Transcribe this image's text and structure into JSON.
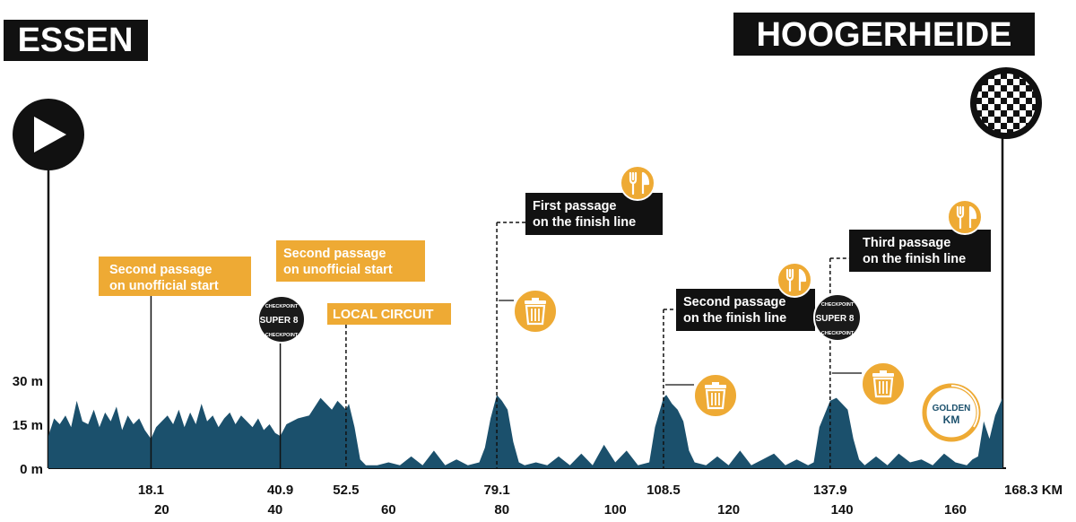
{
  "start_city": "ESSEN",
  "finish_city": "HOOGERHEIDE",
  "colors": {
    "profile": "#1b506c",
    "accent": "#eeaa34",
    "dark": "#111111"
  },
  "icons": {
    "start": "play-icon",
    "finish": "checkered-flag-icon",
    "feed": "fork-knife-icon",
    "waste": "trash-bin-icon"
  },
  "super8_badge": {
    "top": "CHECKPOINT",
    "main": "SUPER 8",
    "bottom": "CHECKPOINT"
  },
  "golden_km_badge": {
    "line1": "GOLDEN",
    "line2": "KM"
  },
  "markers": [
    {
      "km": 18.1,
      "label": [
        "Second passage",
        "on unofficial start"
      ],
      "style": "accent",
      "line": "solid"
    },
    {
      "km": 40.9,
      "label": [
        "Second passage",
        "on unofficial start"
      ],
      "style": "accent",
      "line": "solid",
      "badge": "super8"
    },
    {
      "km": 52.5,
      "label": [
        "LOCAL CIRCUIT"
      ],
      "style": "accent",
      "line": "dashed"
    },
    {
      "km": 79.1,
      "label": [
        "First passage",
        "on the finish line"
      ],
      "style": "dark",
      "line": "dashed",
      "icons": [
        "feed",
        "waste"
      ]
    },
    {
      "km": 108.5,
      "label": [
        "Second passage",
        "on the finish line"
      ],
      "style": "dark",
      "line": "dashed",
      "icons": [
        "feed",
        "waste"
      ]
    },
    {
      "km": 137.9,
      "label": [
        "Third passage",
        "on the finish line"
      ],
      "style": "dark",
      "line": "dashed",
      "badge": "super8",
      "icons": [
        "feed",
        "waste"
      ]
    }
  ],
  "chart_data": {
    "type": "area",
    "title": "",
    "xlabel": "",
    "ylabel": "",
    "xlim": [
      0,
      168.3
    ],
    "ylim": [
      0,
      30
    ],
    "y_ticks": [
      "30 m",
      "15 m",
      "0 m"
    ],
    "y_tick_values": [
      30,
      15,
      0
    ],
    "x_ticks_major": [
      "18.1",
      "40.9",
      "52.5",
      "79.1",
      "108.5",
      "137.9",
      "168.3 KM"
    ],
    "x_ticks_major_values": [
      18.1,
      40.9,
      52.5,
      79.1,
      108.5,
      137.9,
      168.3
    ],
    "x_ticks_minor": [
      "20",
      "40",
      "60",
      "80",
      "100",
      "120",
      "140",
      "160"
    ],
    "x_ticks_minor_values": [
      20,
      40,
      60,
      80,
      100,
      120,
      140,
      160
    ],
    "x": [
      0,
      1,
      2,
      3,
      4,
      5,
      6,
      7,
      8,
      9,
      10,
      11,
      12,
      13,
      14,
      15,
      16,
      17,
      18.1,
      19,
      20,
      21,
      22,
      23,
      24,
      25,
      26,
      27,
      28,
      29,
      30,
      31,
      32,
      33,
      34,
      35,
      36,
      37,
      38,
      39,
      40,
      40.9,
      42,
      44,
      46,
      48,
      50,
      51,
      52.5,
      53,
      54,
      55,
      56,
      57,
      58,
      60,
      62,
      64,
      66,
      68,
      70,
      72,
      74,
      76,
      77,
      78,
      79.1,
      80,
      81,
      82,
      83,
      84,
      86,
      88,
      90,
      92,
      94,
      96,
      98,
      100,
      102,
      104,
      106,
      107,
      108.5,
      109,
      110,
      111,
      112,
      113,
      114,
      116,
      118,
      120,
      122,
      124,
      126,
      128,
      130,
      132,
      134,
      135,
      136,
      137.9,
      139,
      140,
      141,
      142,
      143,
      144,
      146,
      148,
      150,
      152,
      154,
      156,
      158,
      160,
      162,
      163,
      164,
      165,
      166,
      167,
      168.3
    ],
    "y": [
      11,
      17,
      15,
      18,
      14,
      23,
      16,
      15,
      20,
      14,
      19,
      16,
      21,
      13,
      18,
      15,
      17,
      13,
      10,
      14,
      16,
      18,
      15,
      20,
      14,
      19,
      15,
      22,
      16,
      18,
      14,
      17,
      19,
      15,
      18,
      16,
      14,
      17,
      13,
      15,
      12,
      11,
      15,
      17,
      18,
      24,
      20,
      23,
      20,
      22,
      14,
      3,
      1,
      1,
      1,
      2,
      1,
      4,
      1,
      6,
      1,
      3,
      1,
      2,
      7,
      17,
      25,
      23,
      20,
      9,
      2,
      1,
      2,
      1,
      4,
      1,
      5,
      1,
      8,
      2,
      6,
      1,
      2,
      14,
      24,
      25,
      22,
      20,
      16,
      6,
      2,
      1,
      4,
      1,
      6,
      1,
      3,
      5,
      1,
      3,
      1,
      2,
      14,
      23,
      24,
      22,
      20,
      10,
      3,
      1,
      4,
      1,
      5,
      2,
      3,
      1,
      5,
      2,
      1,
      3,
      4,
      16,
      10,
      18,
      24
    ]
  }
}
